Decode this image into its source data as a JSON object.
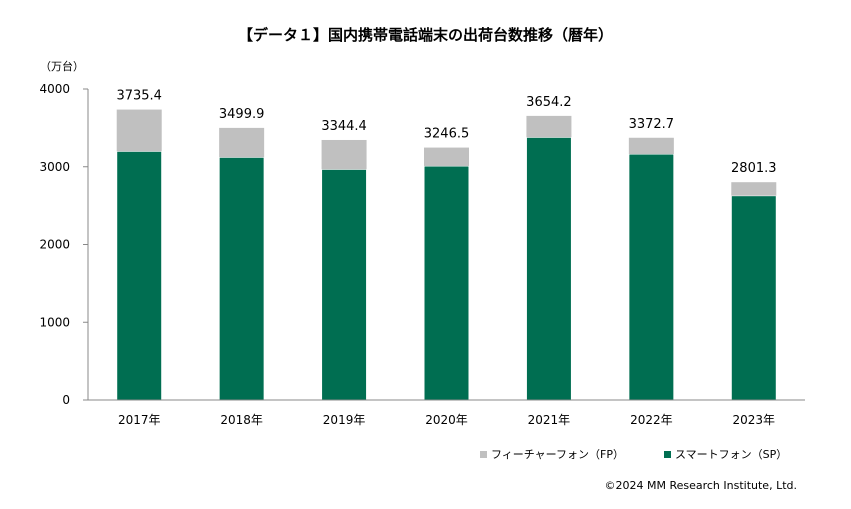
{
  "chart_data": {
    "type": "bar",
    "stacked": true,
    "title": "【データ１】国内携帯電話端末の出荷台数推移（暦年）",
    "ylabel": "（万台）",
    "xlabel": "",
    "ylim": [
      0,
      4000
    ],
    "yticks": [
      0,
      1000,
      2000,
      3000,
      4000
    ],
    "grid": false,
    "legend_position": "bottom-right",
    "categories": [
      "2017年",
      "2018年",
      "2019年",
      "2020年",
      "2021年",
      "2022年",
      "2023年"
    ],
    "series": [
      {
        "name": "スマートフォン（SP）",
        "color": "#006e51",
        "values": [
          3199,
          3122,
          2967,
          3010,
          3379,
          3164,
          2628
        ]
      },
      {
        "name": "フィーチャーフォン（FP）",
        "color": "#c0c0c0",
        "values": [
          536.4,
          377.9,
          377.4,
          236.5,
          275.2,
          208.7,
          173.3
        ]
      }
    ],
    "totals": [
      "3735.4",
      "3499.9",
      "3344.4",
      "3246.5",
      "3654.2",
      "3372.7",
      "2801.3"
    ]
  },
  "copyright": "©2024 MM Research Institute, Ltd."
}
